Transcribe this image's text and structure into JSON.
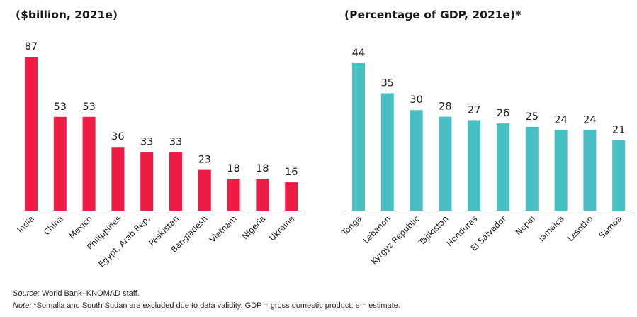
{
  "chart_data": [
    {
      "type": "bar",
      "title": "($billion, 2021e)",
      "categories": [
        "India",
        "China",
        "Mexico",
        "Philippines",
        "Egypt, Arab Rep.",
        "Paskistan",
        "Bangladesh",
        "Vietnam",
        "Nigeria",
        "Ukraine"
      ],
      "values": [
        87,
        53,
        53,
        36,
        33,
        33,
        23,
        18,
        18,
        16
      ],
      "ylim": [
        0,
        87
      ],
      "color": "#ee1b45",
      "grid": false
    },
    {
      "type": "bar",
      "title": "(Percentage of GDP, 2021e)*",
      "categories": [
        "Tonga",
        "Lebanon",
        "Kyrgyz Republic",
        "Tajikistan",
        "Honduras",
        "El Salvador",
        "Nepal",
        "Jamaica",
        "Lesotho",
        "Samoa"
      ],
      "values": [
        44,
        35,
        30,
        28,
        27,
        26,
        25,
        24,
        24,
        21
      ],
      "ylim": [
        0,
        44
      ],
      "color": "#48bfc3",
      "grid": false
    }
  ],
  "footer": {
    "source_label": "Source:",
    "source_text": " World Bank–KNOMAD staff.",
    "note_label": "Note:",
    "note_text": " *Somalia and South Sudan are excluded due to data validity. GDP = gross domestic product; e = estimate."
  }
}
